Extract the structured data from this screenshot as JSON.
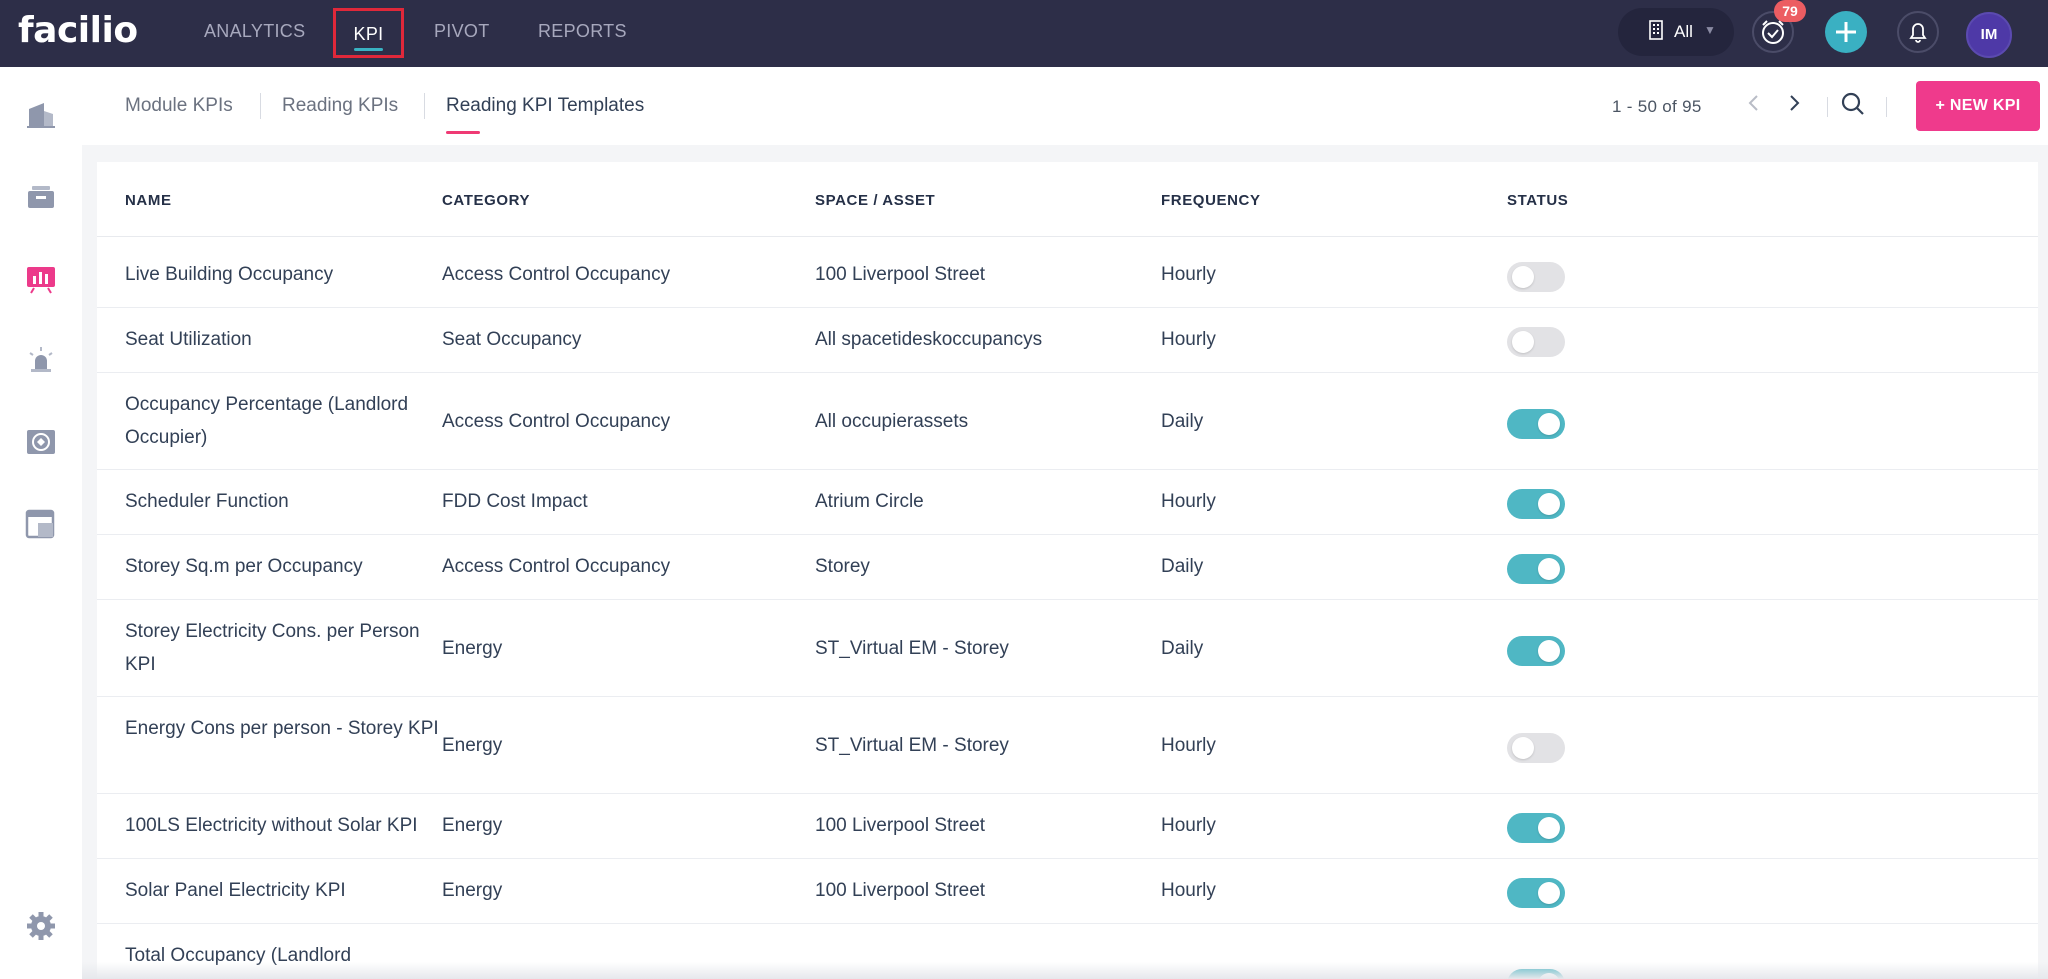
{
  "app": {
    "logo_text": "facilio"
  },
  "topnav": {
    "items": [
      {
        "label": "ANALYTICS"
      },
      {
        "label": "KPI"
      },
      {
        "label": "PIVOT"
      },
      {
        "label": "REPORTS"
      }
    ],
    "site_selector": {
      "label": "All"
    },
    "alarm_badge": "79",
    "avatar_initials": "IM"
  },
  "sidebar": {
    "icons": [
      "buildings-icon",
      "inbox-icon",
      "analytics-icon",
      "alarm-icon",
      "energy-icon",
      "dashboard-icon",
      "gear-icon"
    ],
    "active_index": 2
  },
  "subheader": {
    "tabs": [
      {
        "label": "Module KPIs"
      },
      {
        "label": "Reading KPIs"
      },
      {
        "label": "Reading KPI Templates"
      }
    ],
    "active_tab": 2,
    "pagination": "1 - 50 of 95",
    "new_button": "+ NEW KPI"
  },
  "table": {
    "columns": [
      "NAME",
      "CATEGORY",
      "SPACE / ASSET",
      "FREQUENCY",
      "STATUS"
    ],
    "rows": [
      {
        "name": "Live Building Occupancy",
        "category": "Access Control Occupancy",
        "space": "100 Liverpool Street",
        "frequency": "Hourly",
        "status": false
      },
      {
        "name": "Seat Utilization",
        "category": "Seat Occupancy",
        "space": "All spacetideskoccupancys",
        "frequency": "Hourly",
        "status": false
      },
      {
        "name": "Occupancy Percentage (Landlord Occupier)",
        "category": "Access Control Occupancy",
        "space": "All occupierassets",
        "frequency": "Daily",
        "status": true
      },
      {
        "name": "Scheduler Function",
        "category": "FDD Cost Impact",
        "space": "Atrium Circle",
        "frequency": "Hourly",
        "status": true
      },
      {
        "name": "Storey Sq.m per Occupancy",
        "category": "Access Control Occupancy",
        "space": "Storey",
        "frequency": "Daily",
        "status": true
      },
      {
        "name": "Storey Electricity Cons. per Person KPI",
        "category": "Energy",
        "space": "ST_Virtual EM - Storey",
        "frequency": "Daily",
        "status": true
      },
      {
        "name": "Energy Cons per person - Storey KPI",
        "category": "Energy",
        "space": "ST_Virtual EM - Storey",
        "frequency": "Hourly",
        "status": false
      },
      {
        "name": "100LS Electricity without Solar KPI",
        "category": "Energy",
        "space": "100 Liverpool Street",
        "frequency": "Hourly",
        "status": true
      },
      {
        "name": "Solar Panel Electricity KPI",
        "category": "Energy",
        "space": "100 Liverpool Street",
        "frequency": "Hourly",
        "status": true
      },
      {
        "name": "Total Occupancy (Landlord",
        "category": "",
        "space": "",
        "frequency": "",
        "status": true
      }
    ]
  },
  "colors": {
    "topbar": "#2d2e48",
    "accent_teal": "#4fb7c4",
    "accent_pink": "#ef3a8c",
    "highlight_red": "#e0283a"
  }
}
